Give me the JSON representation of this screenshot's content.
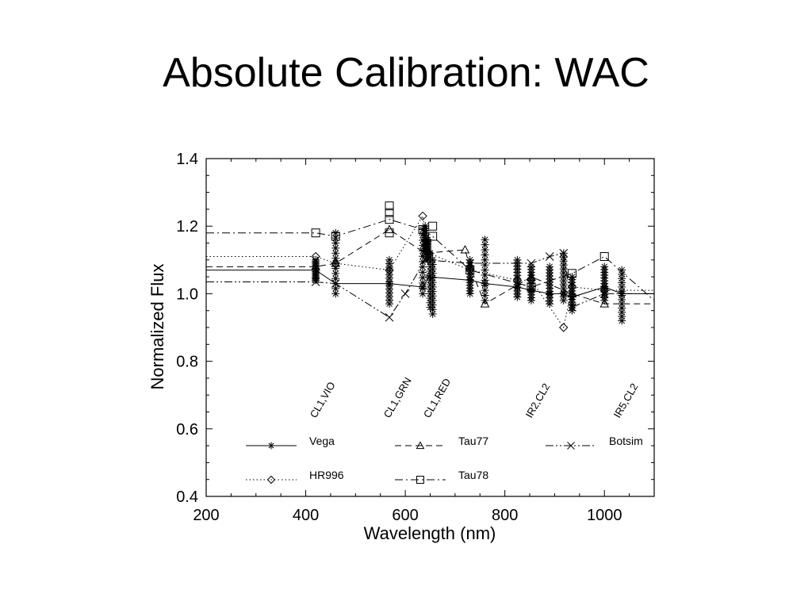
{
  "slide": {
    "title": "Absolute Calibration: WAC"
  },
  "chart_data": {
    "type": "line",
    "title": "",
    "xlabel": "Wavelength (nm)",
    "ylabel": "Normalized Flux",
    "xlim": [
      200,
      1100
    ],
    "ylim": [
      0.4,
      1.4
    ],
    "xticks": [
      200,
      400,
      600,
      800,
      1000
    ],
    "yticks": [
      0.4,
      0.6,
      0.8,
      1.0,
      1.2,
      1.4
    ],
    "ytick_labels": [
      "0.4",
      "0.6",
      "0.8",
      "1.0",
      "1.2",
      "1.4"
    ],
    "grid": false,
    "legend_position": "lower inside, three columns",
    "filter_annotations": [
      {
        "text": "CL1,VIO",
        "x": 420
      },
      {
        "text": "CL1,GRN",
        "x": 568
      },
      {
        "text": "CL1,RED",
        "x": 648
      },
      {
        "text": "IR2,CL2",
        "x": 853
      },
      {
        "text": "IR5,CL2",
        "x": 1030
      }
    ],
    "series": [
      {
        "name": "Vega",
        "marker": "asterisk",
        "linestyle": "solid",
        "x": [
          200,
          420,
          460,
          568,
          635,
          648,
          730,
          760,
          825,
          853,
          890,
          918,
          935,
          1000,
          1035,
          1100
        ],
        "y": [
          1.07,
          1.07,
          1.03,
          1.03,
          1.02,
          1.05,
          1.04,
          1.03,
          1.02,
          1.01,
          1.0,
          1.0,
          0.99,
          1.02,
          1.0,
          1.0
        ],
        "scatter_x": [
          420,
          460,
          568,
          635,
          640,
          645,
          650,
          655,
          730,
          760,
          825,
          853,
          890,
          918,
          935,
          1000,
          1035
        ],
        "scatter_y_min": [
          1.04,
          1.0,
          0.97,
          1.0,
          1.12,
          1.1,
          0.96,
          0.94,
          1.0,
          0.98,
          0.99,
          0.98,
          0.97,
          0.98,
          0.95,
          0.98,
          0.92
        ],
        "scatter_y_max": [
          1.1,
          1.18,
          1.1,
          1.19,
          1.2,
          1.16,
          1.12,
          1.1,
          1.1,
          1.16,
          1.1,
          1.08,
          1.08,
          1.12,
          1.05,
          1.08,
          1.07
        ]
      },
      {
        "name": "HR996",
        "marker": "diamond",
        "linestyle": "dotted",
        "x": [
          200,
          420,
          460,
          568,
          635,
          648,
          730,
          825,
          853,
          918,
          935,
          1000,
          1100
        ],
        "y": [
          1.11,
          1.11,
          1.09,
          1.07,
          1.23,
          1.12,
          1.07,
          1.04,
          1.04,
          0.9,
          1.02,
          1.01,
          1.01
        ]
      },
      {
        "name": "Tau77",
        "marker": "triangle",
        "linestyle": "dashed",
        "x": [
          200,
          420,
          460,
          568,
          640,
          720,
          730,
          760,
          853,
          935,
          1000,
          1100
        ],
        "y": [
          1.08,
          1.08,
          1.09,
          1.19,
          1.12,
          1.13,
          1.08,
          0.97,
          1.05,
          1.0,
          0.97,
          0.97
        ]
      },
      {
        "name": "Botsim",
        "marker": "x",
        "linestyle": "dash-dot-dot",
        "x": [
          200,
          420,
          460,
          568,
          600,
          640,
          730,
          853,
          890,
          918,
          935,
          1000,
          1100
        ],
        "y": [
          1.035,
          1.035,
          1.03,
          0.93,
          1.0,
          1.1,
          1.09,
          1.09,
          1.11,
          1.12,
          0.96,
          1.0,
          1.0
        ]
      },
      {
        "name": "Tau78",
        "marker": "square",
        "linestyle": "dash-dot",
        "x": [
          200,
          420,
          460,
          568,
          635,
          655,
          730,
          853,
          935,
          1000,
          1100
        ],
        "y": [
          1.18,
          1.18,
          1.17,
          1.22,
          1.19,
          1.17,
          1.07,
          1.02,
          1.06,
          1.11,
          0.98
        ],
        "extra_points": [
          [
            568,
            1.26
          ],
          [
            568,
            1.24
          ],
          [
            568,
            1.18
          ],
          [
            655,
            1.2
          ]
        ]
      }
    ]
  }
}
